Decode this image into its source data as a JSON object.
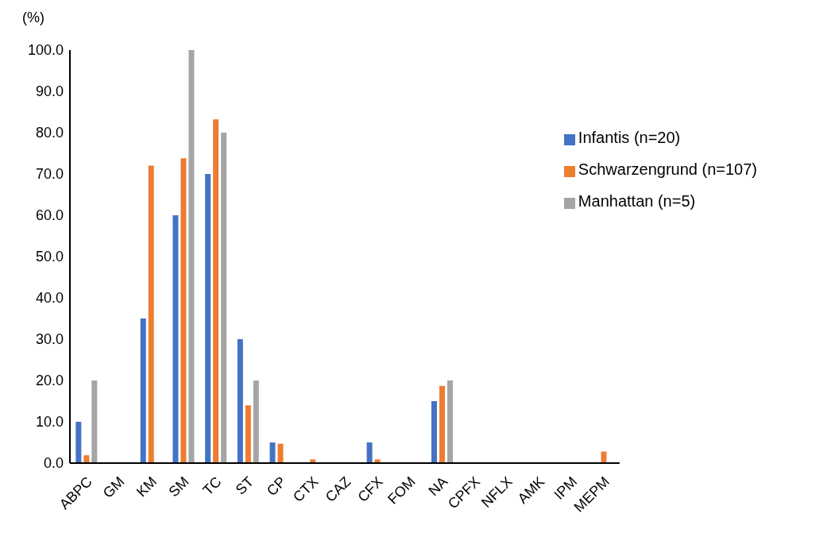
{
  "chart_data": {
    "type": "bar",
    "ylabel": "(%)",
    "categories": [
      "ABPC",
      "GM",
      "KM",
      "SM",
      "TC",
      "ST",
      "CP",
      "CTX",
      "CAZ",
      "CFX",
      "FOM",
      "NA",
      "CPFX",
      "NFLX",
      "AMK",
      "IPM",
      "MEPM"
    ],
    "series": [
      {
        "name": "Infantis (n=20)",
        "color": "#4472c4",
        "values": [
          10,
          0,
          35,
          60,
          70,
          30,
          5,
          0,
          0,
          5,
          0,
          15,
          0,
          0,
          0,
          0,
          0
        ]
      },
      {
        "name": "Schwarzengrund (n=107)",
        "color": "#ed7d31",
        "values": [
          1.9,
          0,
          72,
          73.8,
          83.2,
          14,
          4.7,
          0.9,
          0,
          0.9,
          0,
          18.7,
          0,
          0,
          0,
          0,
          2.8
        ]
      },
      {
        "name": "Manhattan (n=5)",
        "color": "#a5a5a5",
        "values": [
          20,
          0,
          0,
          100,
          80,
          20,
          0,
          0,
          0,
          0,
          0,
          20,
          0,
          0,
          0,
          0,
          0
        ]
      }
    ],
    "ylim": [
      0,
      100
    ],
    "yticks": [
      {
        "value": 0,
        "label": "0.0"
      },
      {
        "value": 10,
        "label": "10.0"
      },
      {
        "value": 20,
        "label": "20.0"
      },
      {
        "value": 30,
        "label": "30.0"
      },
      {
        "value": 40,
        "label": "40.0"
      },
      {
        "value": 50,
        "label": "50.0"
      },
      {
        "value": 60,
        "label": "60.0"
      },
      {
        "value": 70,
        "label": "70.0"
      },
      {
        "value": 80,
        "label": "80.0"
      },
      {
        "value": 90,
        "label": "90.0"
      },
      {
        "value": 100,
        "label": "100.0"
      }
    ],
    "grid": false,
    "legend": "right"
  }
}
